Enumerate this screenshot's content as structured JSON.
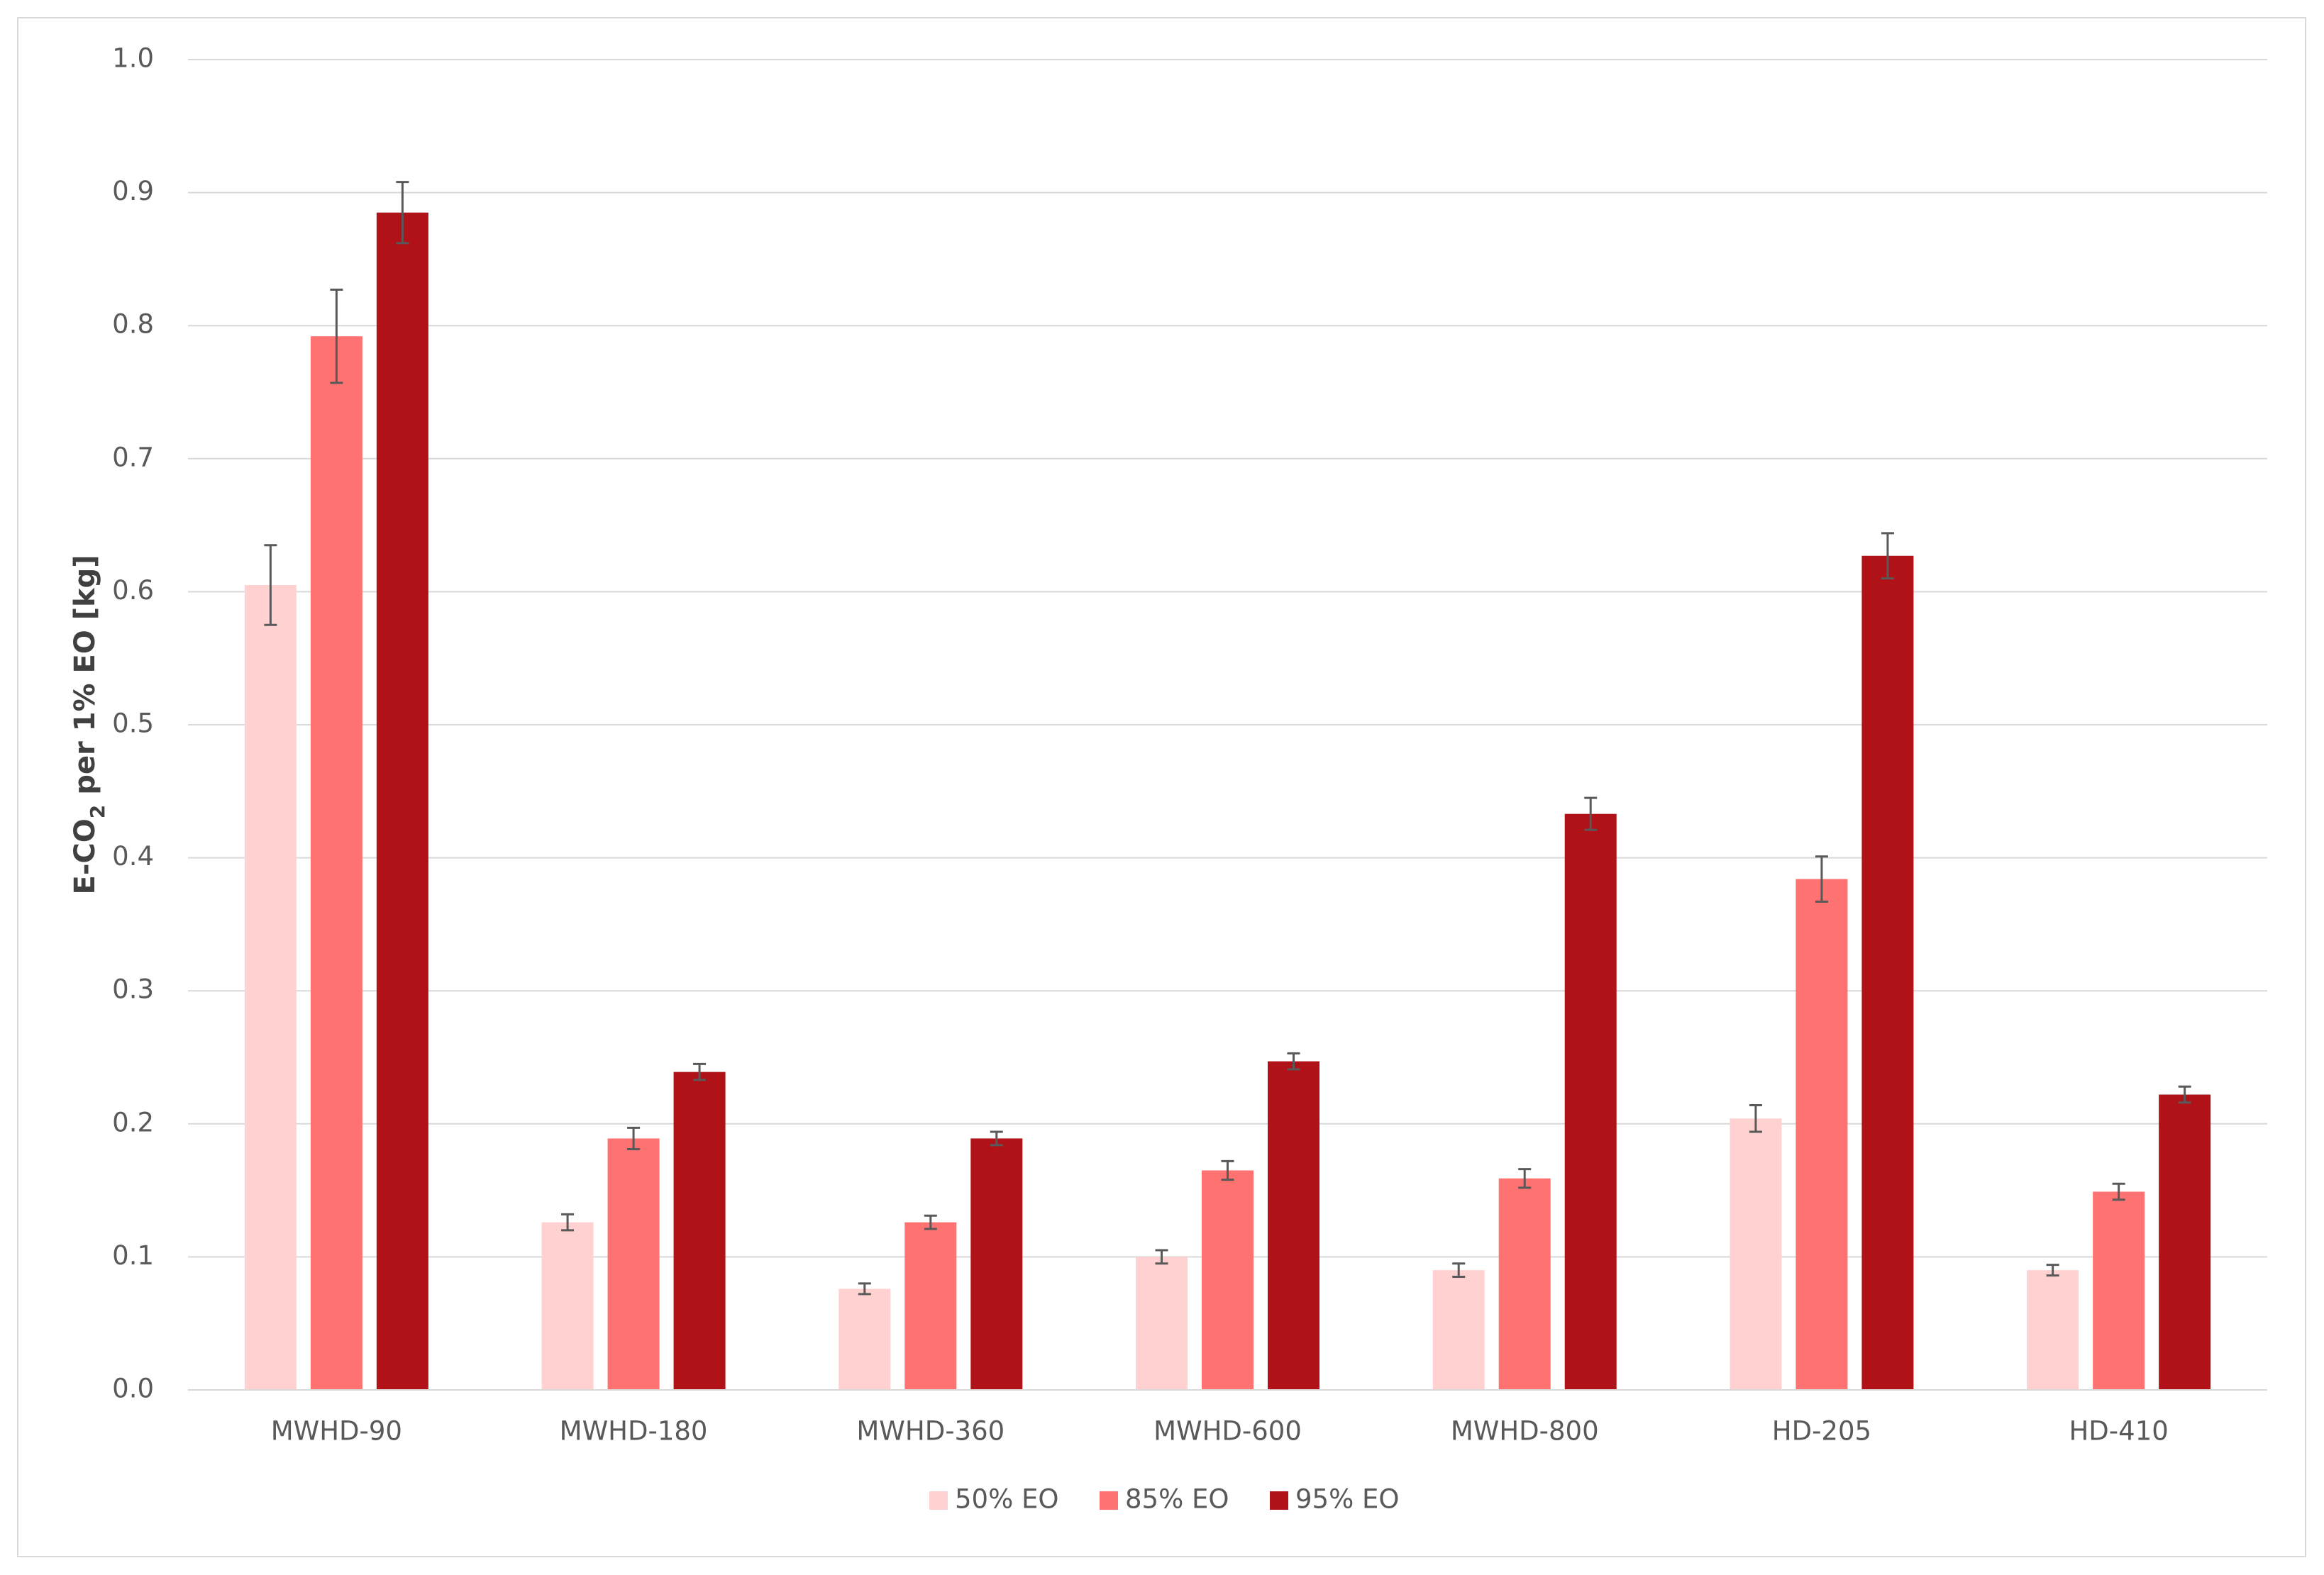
{
  "chart_data": {
    "type": "bar",
    "ylabel": [
      "E-CO",
      "2",
      " per 1% EO [kg]"
    ],
    "categories": [
      "MWHD-90",
      "MWHD-180",
      "MWHD-360",
      "MWHD-600",
      "MWHD-800",
      "HD-205",
      "HD-410"
    ],
    "series": [
      {
        "name": "50% EO",
        "color": "#ffd1d1",
        "values": [
          0.605,
          0.126,
          0.076,
          0.1,
          0.09,
          0.204,
          0.09
        ],
        "errors": [
          0.03,
          0.006,
          0.004,
          0.005,
          0.005,
          0.01,
          0.004
        ]
      },
      {
        "name": "85% EO",
        "color": "#ff7272",
        "values": [
          0.792,
          0.189,
          0.126,
          0.165,
          0.159,
          0.384,
          0.149
        ],
        "errors": [
          0.035,
          0.008,
          0.005,
          0.007,
          0.007,
          0.017,
          0.006
        ]
      },
      {
        "name": "95% EO",
        "color": "#b01217",
        "values": [
          0.885,
          0.239,
          0.189,
          0.247,
          0.433,
          0.627,
          0.222
        ],
        "errors": [
          0.023,
          0.006,
          0.005,
          0.006,
          0.012,
          0.017,
          0.006
        ]
      }
    ],
    "ylim": [
      0,
      1
    ],
    "yticks": [
      {
        "value": 0,
        "label": "0.0"
      },
      0.1,
      0.2,
      0.3,
      0.4,
      0.5,
      0.6,
      0.7,
      0.8,
      0.9,
      {
        "value": 1,
        "label": "1.0"
      }
    ],
    "grid": true,
    "legend": "bottom"
  }
}
